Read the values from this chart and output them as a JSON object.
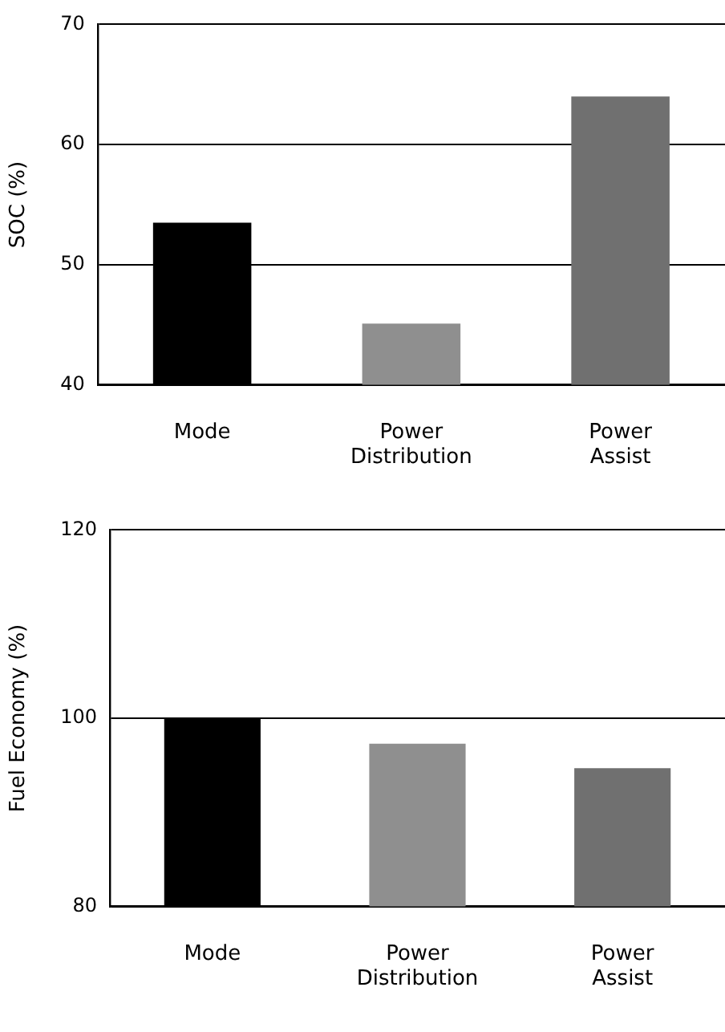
{
  "chart_data": [
    {
      "type": "bar",
      "ylabel": "SOC (%)",
      "categories": [
        "Mode",
        "Power Distribution",
        "Power Assist"
      ],
      "values": [
        53.5,
        45.1,
        64.0
      ],
      "colors": [
        "#000000",
        "#8f8f8f",
        "#707070"
      ],
      "ylim": [
        40,
        70
      ],
      "yticks": [
        40,
        50,
        60,
        70
      ],
      "grid": "y",
      "legend": false
    },
    {
      "type": "bar",
      "ylabel": "Fuel Economy (%)",
      "categories": [
        "Mode",
        "Power Distribution",
        "Power Assist"
      ],
      "values": [
        100,
        97.3,
        94.7
      ],
      "colors": [
        "#000000",
        "#8f8f8f",
        "#707070"
      ],
      "ylim": [
        80,
        120
      ],
      "yticks": [
        80,
        100,
        120
      ],
      "grid": "y",
      "legend": false
    }
  ]
}
